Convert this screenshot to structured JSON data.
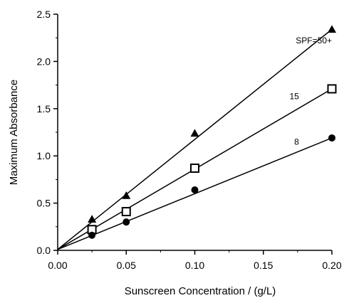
{
  "chart_data": {
    "type": "scatter",
    "xlabel": "Sunscreen Concentration / (g/L)",
    "ylabel": "Maximum Absorbance",
    "xlim": [
      0.0,
      0.2
    ],
    "ylim": [
      0.0,
      2.5
    ],
    "xticks": [
      "0.00",
      "0.05",
      "0.10",
      "0.15",
      "0.20"
    ],
    "xtick_values": [
      0.0,
      0.05,
      0.1,
      0.15,
      0.2
    ],
    "yticks": [
      "0.0",
      "0.5",
      "1.0",
      "1.5",
      "2.0",
      "2.5"
    ],
    "ytick_values": [
      0.0,
      0.5,
      1.0,
      1.5,
      2.0,
      2.5
    ],
    "grid": false,
    "fit_lines": true,
    "series": [
      {
        "label": "SPF=50+",
        "marker": "triangle",
        "x": [
          0.025,
          0.05,
          0.1,
          0.2
        ],
        "y": [
          0.33,
          0.58,
          1.24,
          2.34
        ],
        "fit": {
          "x": [
            0.0,
            0.2
          ],
          "y": [
            0.01,
            2.34
          ]
        },
        "label_at": {
          "x": 0.2,
          "y": 2.19
        }
      },
      {
        "label": "15",
        "marker": "open-square",
        "x": [
          0.025,
          0.05,
          0.1,
          0.2
        ],
        "y": [
          0.22,
          0.41,
          0.87,
          1.71
        ],
        "fit": {
          "x": [
            0.0,
            0.2
          ],
          "y": [
            0.01,
            1.71
          ]
        },
        "label_at": {
          "x": 0.176,
          "y": 1.6
        }
      },
      {
        "label": "8",
        "marker": "filled-circle",
        "x": [
          0.025,
          0.05,
          0.1,
          0.2
        ],
        "y": [
          0.16,
          0.3,
          0.64,
          1.19
        ],
        "fit": {
          "x": [
            0.0,
            0.2
          ],
          "y": [
            0.01,
            1.19
          ]
        },
        "label_at": {
          "x": 0.176,
          "y": 1.12
        }
      }
    ]
  }
}
